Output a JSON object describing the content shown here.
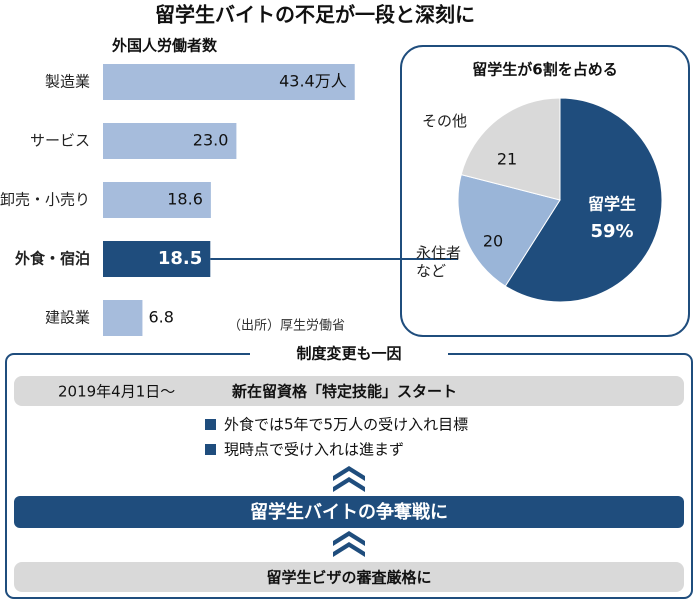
{
  "title": "留学生バイトの不足が一段と深刻に",
  "chart_data": [
    {
      "type": "bar",
      "title": "外国人労働者数",
      "orientation": "horizontal",
      "categories": [
        "製造業",
        "サービス",
        "卸売・小売り",
        "外食・宿泊",
        "建設業"
      ],
      "values": [
        43.4,
        23.0,
        18.6,
        18.5,
        6.8
      ],
      "value_labels": [
        "43.4万人",
        "23.0",
        "18.6",
        "18.5",
        "6.8"
      ],
      "colors": [
        "#a6bcdc",
        "#a6bcdc",
        "#a6bcdc",
        "#1f4d7d",
        "#a6bcdc"
      ],
      "source": "（出所）厚生労働省"
    },
    {
      "type": "pie",
      "title": "留学生が6割を占める",
      "labels": [
        "留学生",
        "永住者など",
        "その他"
      ],
      "values": [
        59,
        20,
        21
      ],
      "value_labels": [
        "59%",
        "20",
        "21"
      ],
      "colors": [
        "#1f4d7d",
        "#9ab5d8",
        "#d9d9d9"
      ]
    }
  ],
  "diagram": {
    "title": "制度変更も一因",
    "date": "2019年4月1日～",
    "event": "新在留資格「特定技能」スタート",
    "bullets": [
      "外食では5年で5万人の受け入れ目標",
      "現時点で受け入れは進まず"
    ],
    "result": "留学生バイトの争奪戦に",
    "cause": "留学生ビザの審査厳格に"
  }
}
